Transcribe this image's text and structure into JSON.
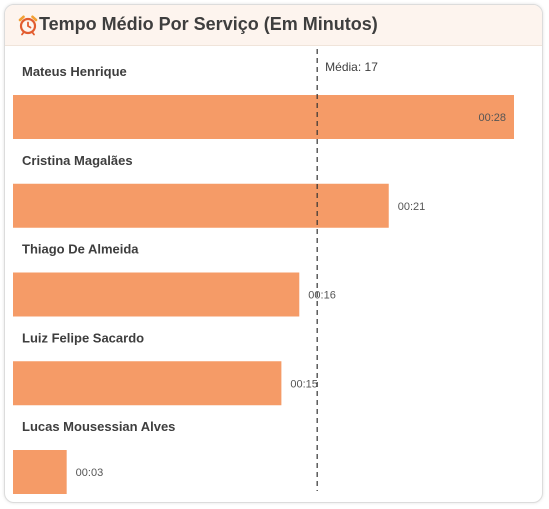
{
  "header": {
    "title": "Tempo Médio Por Serviço (Em Minutos)",
    "icon": "alarm-clock-icon"
  },
  "colors": {
    "bar": "#f59b67",
    "header_bg": "#fdf4ee",
    "average_line": "#333333"
  },
  "chart_data": {
    "type": "bar",
    "orientation": "horizontal",
    "categories": [
      "Mateus Henrique",
      "Cristina Magalães",
      "Thiago De Almeida",
      "Luiz Felipe Sacardo",
      "Lucas Mousessian Alves"
    ],
    "values": [
      28,
      21,
      16,
      15,
      3
    ],
    "value_labels": [
      "00:28",
      "00:21",
      "00:16",
      "00:15",
      "00:03"
    ],
    "unit": "minutes",
    "average": {
      "value": 17,
      "label": "Média: 17"
    },
    "xlim": [
      0,
      28
    ],
    "grid": false,
    "legend": "none"
  }
}
